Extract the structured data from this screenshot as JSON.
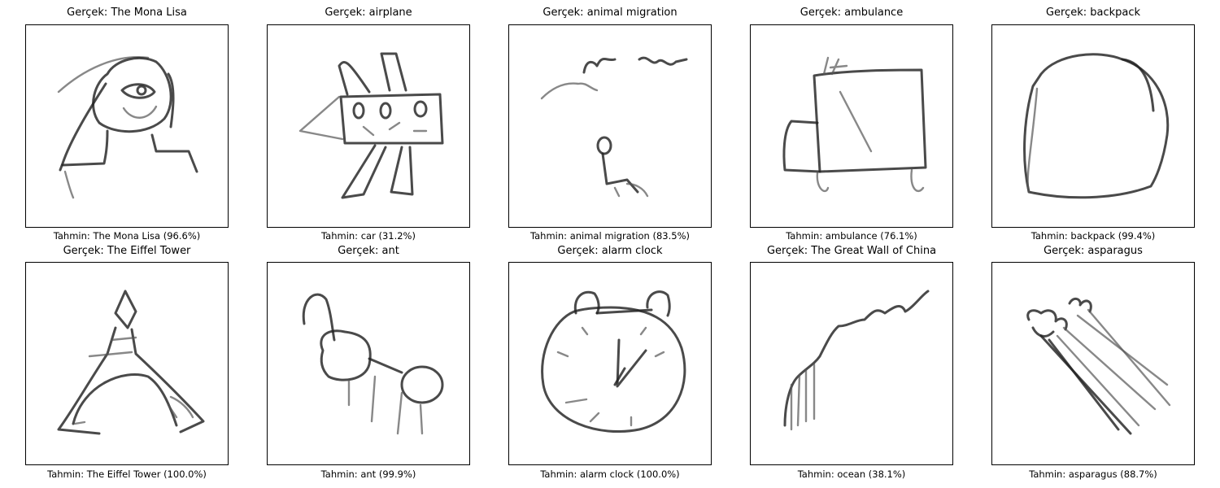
{
  "panels": [
    {
      "title": "Gerçek: The Mona Lisa",
      "caption": "Tahmin: The Mona Lisa (96.6%)",
      "icon": "mona-lisa-sketch"
    },
    {
      "title": "Gerçek: airplane",
      "caption": "Tahmin: car (31.2%)",
      "icon": "airplane-sketch"
    },
    {
      "title": "Gerçek: animal migration",
      "caption": "Tahmin: animal migration (83.5%)",
      "icon": "animal-migration-sketch"
    },
    {
      "title": "Gerçek: ambulance",
      "caption": "Tahmin: ambulance (76.1%)",
      "icon": "ambulance-sketch"
    },
    {
      "title": "Gerçek: backpack",
      "caption": "Tahmin: backpack (99.4%)",
      "icon": "backpack-sketch"
    },
    {
      "title": "Gerçek: The Eiffel Tower",
      "caption": "Tahmin: The Eiffel Tower (100.0%)",
      "icon": "eiffel-tower-sketch"
    },
    {
      "title": "Gerçek: ant",
      "caption": "Tahmin: ant (99.9%)",
      "icon": "ant-sketch"
    },
    {
      "title": "Gerçek: alarm clock",
      "caption": "Tahmin: alarm clock (100.0%)",
      "icon": "alarm-clock-sketch"
    },
    {
      "title": "Gerçek: The Great Wall of China",
      "caption": "Tahmin: ocean (38.1%)",
      "icon": "great-wall-sketch"
    },
    {
      "title": "Gerçek: asparagus",
      "caption": "Tahmin: asparagus (88.7%)",
      "icon": "asparagus-sketch"
    }
  ]
}
